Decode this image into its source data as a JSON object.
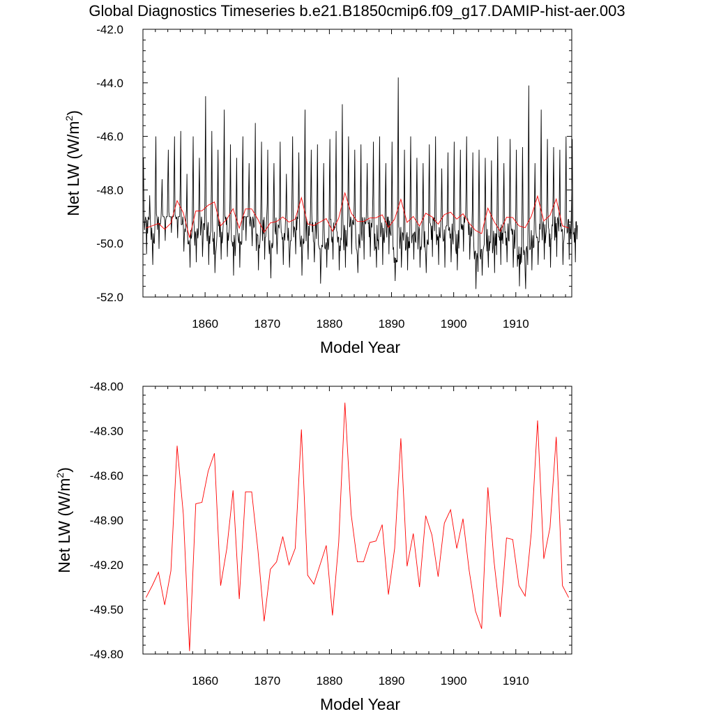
{
  "page": {
    "title": "Global Diagnostics Timeseries b.e21.B1850cmip6.f09_g17.DAMIP-hist-aer.003"
  },
  "chart_data": [
    {
      "type": "line",
      "xlabel": "Model Year",
      "ylabel": "Net LW (W/m2)",
      "ylabel_parts": {
        "main": "Net LW (W/m",
        "sup": "2",
        "tail": ")"
      },
      "xlim": [
        1850,
        1919
      ],
      "ylim": [
        -52.0,
        -42.0
      ],
      "xticks": [
        1860,
        1870,
        1880,
        1890,
        1900,
        1910
      ],
      "yticks": [
        -52.0,
        -50.0,
        -48.0,
        -46.0,
        -44.0,
        -42.0
      ],
      "ytick_labels": [
        "-52.0",
        "-50.0",
        "-48.0",
        "-46.0",
        "-44.0",
        "-42.0"
      ],
      "series": [
        {
          "kind": "monthly",
          "color": "#000000",
          "x_start": 1850.0,
          "x_step": 0.08333333,
          "seasonal_min": [
            -50.4,
            -50.8,
            -50.2,
            -49.9,
            -49.6,
            -49.8,
            -50.3,
            -50.9,
            -50.7,
            -50.5,
            -50.8,
            -51.1,
            -50.6,
            -50.5,
            -51.2,
            -50.9,
            -49.9,
            -50.1,
            -51.0,
            -50.6,
            -51.3,
            -50.4,
            -50.8,
            -50.9,
            -50.4,
            -51.2,
            -50.6,
            -50.7,
            -51.5,
            -50.9,
            -50.6,
            -51.0,
            -50.9,
            -50.4,
            -51.1,
            -50.6,
            -50.5,
            -50.9,
            -50.8,
            -50.4,
            -51.4,
            -50.9,
            -51.0,
            -50.6,
            -50.9,
            -51.1,
            -50.5,
            -50.8,
            -50.9,
            -50.7,
            -51.0,
            -50.3,
            -50.6,
            -51.7,
            -51.2,
            -50.9,
            -51.1,
            -50.8,
            -50.7,
            -50.9,
            -51.6,
            -51.7,
            -51.0,
            -50.8,
            -50.6,
            -50.9,
            -50.5,
            -50.8,
            -50.6,
            -50.7
          ],
          "seasonal_max": [
            -46.8,
            -48.2,
            -46.0,
            -47.6,
            -46.5,
            -46.0,
            -45.8,
            -47.4,
            -46.0,
            -46.8,
            -44.5,
            -45.8,
            -46.5,
            -45.0,
            -46.3,
            -46.8,
            -46.0,
            -47.0,
            -45.5,
            -46.2,
            -46.5,
            -47.0,
            -46.2,
            -47.4,
            -46.0,
            -46.6,
            -45.0,
            -46.5,
            -46.3,
            -47.0,
            -46.1,
            -45.8,
            -44.8,
            -46.0,
            -46.5,
            -46.3,
            -47.0,
            -46.2,
            -46.0,
            -47.0,
            -46.2,
            -43.8,
            -46.5,
            -46.0,
            -46.8,
            -47.0,
            -46.3,
            -46.0,
            -47.2,
            -46.6,
            -46.2,
            -46.5,
            -46.0,
            -46.6,
            -46.5,
            -46.8,
            -46.9,
            -46.0,
            -47.0,
            -46.1,
            -46.5,
            -46.4,
            -44.1,
            -47.0,
            -45.0,
            -46.1,
            -46.4,
            -46.5,
            -46.0,
            -46.1
          ]
        },
        {
          "kind": "annual",
          "color": "#ff0000",
          "x": [
            1850.5,
            1851.5,
            1852.5,
            1853.5,
            1854.5,
            1855.5,
            1856.5,
            1857.5,
            1858.5,
            1859.5,
            1860.5,
            1861.5,
            1862.5,
            1863.5,
            1864.5,
            1865.5,
            1866.5,
            1867.5,
            1868.5,
            1869.5,
            1870.5,
            1871.5,
            1872.5,
            1873.5,
            1874.5,
            1875.5,
            1876.5,
            1877.5,
            1878.5,
            1879.5,
            1880.5,
            1881.5,
            1882.5,
            1883.5,
            1884.5,
            1885.5,
            1886.5,
            1887.5,
            1888.5,
            1889.5,
            1890.5,
            1891.5,
            1892.5,
            1893.5,
            1894.5,
            1895.5,
            1896.5,
            1897.5,
            1898.5,
            1899.5,
            1900.5,
            1901.5,
            1902.5,
            1903.5,
            1904.5,
            1905.5,
            1906.5,
            1907.5,
            1908.5,
            1909.5,
            1910.5,
            1911.5,
            1912.5,
            1913.5,
            1914.5,
            1915.5,
            1916.5,
            1917.5,
            1918.5
          ],
          "values": [
            -49.42,
            -49.34,
            -49.25,
            -49.47,
            -49.24,
            -48.4,
            -48.86,
            -49.78,
            -48.79,
            -48.78,
            -48.57,
            -48.45,
            -49.34,
            -49.09,
            -48.7,
            -49.43,
            -48.71,
            -48.71,
            -49.1,
            -49.58,
            -49.23,
            -49.18,
            -49.01,
            -49.2,
            -49.09,
            -48.29,
            -49.27,
            -49.33,
            -49.2,
            -49.07,
            -49.54,
            -49.05,
            -48.11,
            -48.86,
            -49.18,
            -49.18,
            -49.05,
            -49.04,
            -48.93,
            -49.4,
            -49.09,
            -48.35,
            -49.21,
            -48.99,
            -49.35,
            -48.87,
            -49.0,
            -49.28,
            -48.92,
            -48.83,
            -49.09,
            -48.89,
            -49.24,
            -49.51,
            -49.63,
            -48.68,
            -49.18,
            -49.55,
            -49.02,
            -49.03,
            -49.34,
            -49.41,
            -48.98,
            -48.23,
            -49.16,
            -48.95,
            -48.34,
            -49.34,
            -49.42
          ]
        }
      ]
    },
    {
      "type": "line",
      "xlabel": "Model Year",
      "ylabel": "Net LW (W/m2)",
      "ylabel_parts": {
        "main": "Net LW (W/m",
        "sup": "2",
        "tail": ")"
      },
      "xlim": [
        1850,
        1919
      ],
      "ylim": [
        -49.8,
        -48.0
      ],
      "xticks": [
        1860,
        1870,
        1880,
        1890,
        1900,
        1910
      ],
      "yticks": [
        -49.8,
        -49.5,
        -49.2,
        -48.9,
        -48.6,
        -48.3,
        -48.0
      ],
      "ytick_labels": [
        "-49.80",
        "-49.50",
        "-49.20",
        "-48.90",
        "-48.60",
        "-48.30",
        "-48.00"
      ],
      "series": [
        {
          "kind": "annual",
          "color": "#ff0000",
          "x": [
            1850.5,
            1851.5,
            1852.5,
            1853.5,
            1854.5,
            1855.5,
            1856.5,
            1857.5,
            1858.5,
            1859.5,
            1860.5,
            1861.5,
            1862.5,
            1863.5,
            1864.5,
            1865.5,
            1866.5,
            1867.5,
            1868.5,
            1869.5,
            1870.5,
            1871.5,
            1872.5,
            1873.5,
            1874.5,
            1875.5,
            1876.5,
            1877.5,
            1878.5,
            1879.5,
            1880.5,
            1881.5,
            1882.5,
            1883.5,
            1884.5,
            1885.5,
            1886.5,
            1887.5,
            1888.5,
            1889.5,
            1890.5,
            1891.5,
            1892.5,
            1893.5,
            1894.5,
            1895.5,
            1896.5,
            1897.5,
            1898.5,
            1899.5,
            1900.5,
            1901.5,
            1902.5,
            1903.5,
            1904.5,
            1905.5,
            1906.5,
            1907.5,
            1908.5,
            1909.5,
            1910.5,
            1911.5,
            1912.5,
            1913.5,
            1914.5,
            1915.5,
            1916.5,
            1917.5,
            1918.5
          ],
          "values": [
            -49.42,
            -49.34,
            -49.25,
            -49.47,
            -49.24,
            -48.4,
            -48.86,
            -49.78,
            -48.79,
            -48.78,
            -48.57,
            -48.45,
            -49.34,
            -49.09,
            -48.7,
            -49.43,
            -48.71,
            -48.71,
            -49.1,
            -49.58,
            -49.23,
            -49.18,
            -49.01,
            -49.2,
            -49.09,
            -48.29,
            -49.27,
            -49.33,
            -49.2,
            -49.07,
            -49.54,
            -49.05,
            -48.11,
            -48.86,
            -49.18,
            -49.18,
            -49.05,
            -49.04,
            -48.93,
            -49.4,
            -49.09,
            -48.35,
            -49.21,
            -48.99,
            -49.35,
            -48.87,
            -49.0,
            -49.28,
            -48.92,
            -48.83,
            -49.09,
            -48.89,
            -49.24,
            -49.51,
            -49.63,
            -48.68,
            -49.18,
            -49.55,
            -49.02,
            -49.03,
            -49.34,
            -49.41,
            -48.98,
            -48.23,
            -49.16,
            -48.95,
            -48.34,
            -49.34,
            -49.42
          ]
        }
      ]
    }
  ]
}
